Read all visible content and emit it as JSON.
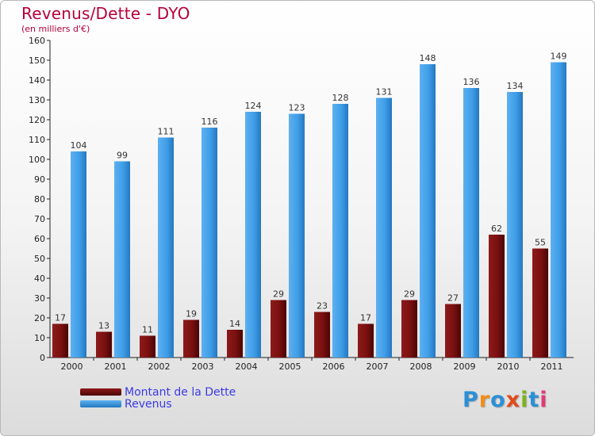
{
  "header": {
    "title": "Revenus/Dette - DYO",
    "subtitle": "(en milliers d'€)"
  },
  "legend": {
    "debt_label": "Montant de la Dette",
    "revenue_label": "Revenus"
  },
  "logo": {
    "letters": [
      "P",
      "r",
      "o",
      "x",
      "i",
      "t",
      "i"
    ]
  },
  "colors": {
    "debt": "#7a1010",
    "revenue": "#3a9ae6",
    "title": "#b5003a"
  },
  "chart_data": {
    "type": "bar",
    "title": "Revenus/Dette - DYO",
    "subtitle": "(en milliers d'€)",
    "categories": [
      "2000",
      "2001",
      "2002",
      "2003",
      "2004",
      "2005",
      "2006",
      "2007",
      "2008",
      "2009",
      "2010",
      "2011"
    ],
    "series": [
      {
        "name": "Montant de la Dette",
        "values": [
          17,
          13,
          11,
          19,
          14,
          29,
          23,
          17,
          29,
          27,
          62,
          55
        ]
      },
      {
        "name": "Revenus",
        "values": [
          104,
          99,
          111,
          116,
          124,
          123,
          128,
          131,
          148,
          136,
          134,
          149
        ]
      }
    ],
    "ylim": [
      0,
      160
    ],
    "ytick_step": 10,
    "grid": false,
    "legend_position": "bottom-left"
  }
}
